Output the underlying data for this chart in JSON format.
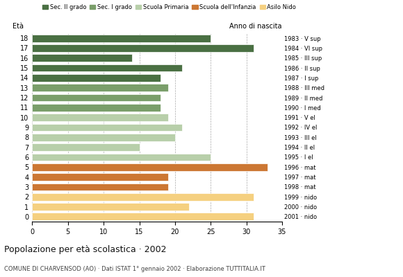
{
  "ages": [
    18,
    17,
    16,
    15,
    14,
    13,
    12,
    11,
    10,
    9,
    8,
    7,
    6,
    5,
    4,
    3,
    2,
    1,
    0
  ],
  "values": [
    25,
    31,
    14,
    21,
    18,
    19,
    18,
    18,
    19,
    21,
    20,
    15,
    25,
    33,
    19,
    19,
    31,
    22,
    31
  ],
  "categories": {
    "Sec. II grado": {
      "ages": [
        18,
        17,
        16,
        15,
        14
      ],
      "color": "#4a7043"
    },
    "Sec. I grado": {
      "ages": [
        13,
        12,
        11
      ],
      "color": "#7a9e6a"
    },
    "Scuola Primaria": {
      "ages": [
        10,
        9,
        8,
        7,
        6
      ],
      "color": "#b8cfaa"
    },
    "Scuola dell'Infanzia": {
      "ages": [
        5,
        4,
        3
      ],
      "color": "#cc7733"
    },
    "Asilo Nido": {
      "ages": [
        2,
        1,
        0
      ],
      "color": "#f5d080"
    }
  },
  "anno_labels_by_age": {
    "18": "1983 · V sup",
    "17": "1984 · VI sup",
    "16": "1985 · III sup",
    "15": "1986 · II sup",
    "14": "1987 · I sup",
    "13": "1988 · III med",
    "12": "1989 · II med",
    "11": "1990 · I med",
    "10": "1991 · V el",
    "9": "1992 · IV el",
    "8": "1993 · III el",
    "7": "1994 · II el",
    "6": "1995 · I el",
    "5": "1996 · mat",
    "4": "1997 · mat",
    "3": "1998 · mat",
    "2": "1999 · nido",
    "1": "2000 · nido",
    "0": "2001 · nido"
  },
  "xlim": [
    0,
    35
  ],
  "xticks": [
    0,
    5,
    10,
    15,
    20,
    25,
    30,
    35
  ],
  "title": "Popolazione per età scolastica · 2002",
  "subtitle": "COMUNE DI CHARVENSOD (AO) · Dati ISTAT 1° gennaio 2002 · Elaborazione TUTTITALIA.IT",
  "ylabel": "Età",
  "anno_header": "Anno di nascita",
  "bg_color": "#ffffff",
  "grid_color": "#aaaaaa",
  "bar_height": 0.75
}
